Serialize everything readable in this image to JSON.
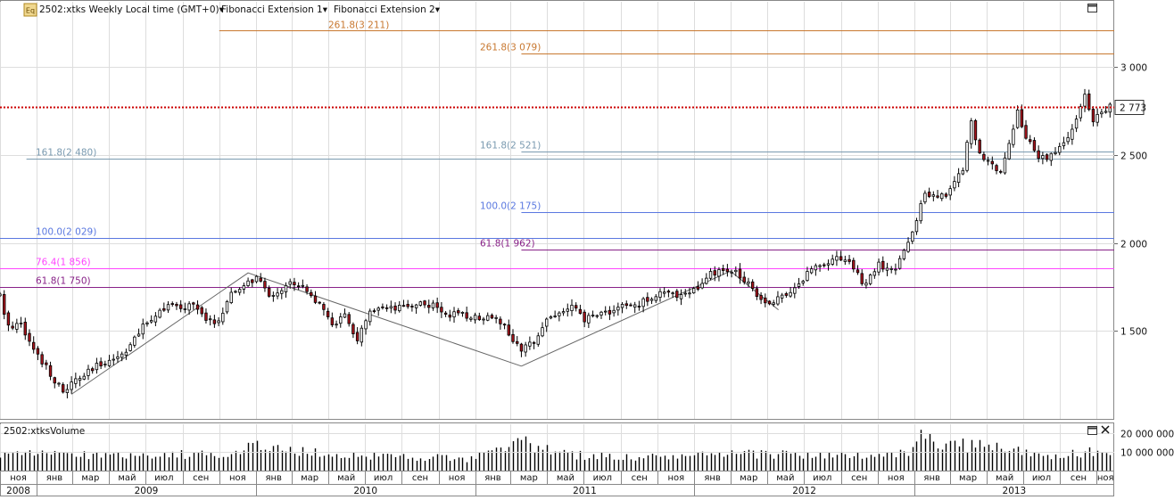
{
  "toolbar": {
    "symbol_label": "2502:xtks Weekly Local time (GMT+0)",
    "study1_label": "Fibonacci Extension 1",
    "study2_label": "Fibonacci Extension 2",
    "caret": "▾",
    "icon_glyph": "Eq"
  },
  "volume_panel": {
    "title": "2502:xtksVolume"
  },
  "colors": {
    "up": "#ffffff",
    "down": "#a8141c",
    "candle_outline": "#000000",
    "fib_lines": {
      "261.8": "#c87830",
      "161.8": "#7a9ab0",
      "100.0": "#5a78e0",
      "76.4": "#ff44ff",
      "61.8": "#882288"
    },
    "last_price_line": "#cc0000",
    "grid": "#dddddd",
    "volume_bar": "#000000"
  },
  "chart_data": [
    {
      "type": "candlestick",
      "timeframe": "Weekly",
      "x_range": [
        "2008-11-01",
        "2013-11-30"
      ],
      "y_range": [
        1000,
        3280
      ],
      "y_ticks": [
        {
          "value": 1500,
          "label": "1 500"
        },
        {
          "value": 2000,
          "label": "2 000"
        },
        {
          "value": 2500,
          "label": "2 500"
        },
        {
          "value": 3000,
          "label": "3 000"
        }
      ],
      "last_price": {
        "value": 2773,
        "label": "2 773"
      },
      "weekly_close_path": [
        [
          "2008-11-01",
          1700
        ],
        [
          "2008-11-08",
          1580
        ],
        [
          "2008-11-22",
          1520
        ],
        [
          "2008-12-06",
          1560
        ],
        [
          "2008-12-20",
          1430
        ],
        [
          "2009-01-03",
          1360
        ],
        [
          "2009-01-17",
          1300
        ],
        [
          "2009-01-31",
          1220
        ],
        [
          "2009-02-14",
          1150
        ],
        [
          "2009-02-28",
          1200
        ],
        [
          "2009-03-14",
          1230
        ],
        [
          "2009-04-04",
          1280
        ],
        [
          "2009-04-25",
          1330
        ],
        [
          "2009-05-16",
          1350
        ],
        [
          "2009-06-06",
          1420
        ],
        [
          "2009-06-27",
          1520
        ],
        [
          "2009-07-18",
          1600
        ],
        [
          "2009-08-08",
          1650
        ],
        [
          "2009-08-29",
          1620
        ],
        [
          "2009-09-19",
          1660
        ],
        [
          "2009-10-10",
          1550
        ],
        [
          "2009-10-31",
          1560
        ],
        [
          "2009-11-21",
          1700
        ],
        [
          "2009-12-12",
          1760
        ],
        [
          "2010-01-02",
          1800
        ],
        [
          "2010-01-23",
          1700
        ],
        [
          "2010-02-13",
          1740
        ],
        [
          "2010-03-06",
          1780
        ],
        [
          "2010-03-27",
          1740
        ],
        [
          "2010-04-17",
          1640
        ],
        [
          "2010-05-08",
          1540
        ],
        [
          "2010-05-29",
          1580
        ],
        [
          "2010-06-19",
          1450
        ],
        [
          "2010-07-10",
          1600
        ],
        [
          "2010-07-31",
          1620
        ],
        [
          "2010-08-21",
          1620
        ],
        [
          "2010-09-11",
          1640
        ],
        [
          "2010-10-02",
          1660
        ],
        [
          "2010-10-23",
          1640
        ],
        [
          "2010-11-13",
          1600
        ],
        [
          "2010-12-04",
          1590
        ],
        [
          "2010-12-25",
          1580
        ],
        [
          "2011-01-15",
          1580
        ],
        [
          "2011-02-05",
          1590
        ],
        [
          "2011-03-05",
          1450
        ],
        [
          "2011-03-19",
          1380
        ],
        [
          "2011-04-09",
          1450
        ],
        [
          "2011-04-30",
          1570
        ],
        [
          "2011-05-21",
          1600
        ],
        [
          "2011-06-11",
          1640
        ],
        [
          "2011-07-02",
          1560
        ],
        [
          "2011-07-23",
          1600
        ],
        [
          "2011-08-13",
          1610
        ],
        [
          "2011-09-03",
          1640
        ],
        [
          "2011-09-24",
          1640
        ],
        [
          "2011-10-15",
          1680
        ],
        [
          "2011-11-05",
          1720
        ],
        [
          "2011-11-26",
          1700
        ],
        [
          "2011-12-17",
          1720
        ],
        [
          "2012-01-07",
          1740
        ],
        [
          "2012-01-28",
          1820
        ],
        [
          "2012-02-18",
          1840
        ],
        [
          "2012-03-10",
          1830
        ],
        [
          "2012-03-31",
          1780
        ],
        [
          "2012-04-21",
          1680
        ],
        [
          "2012-05-12",
          1660
        ],
        [
          "2012-06-02",
          1720
        ],
        [
          "2012-06-23",
          1760
        ],
        [
          "2012-07-14",
          1860
        ],
        [
          "2012-08-04",
          1890
        ],
        [
          "2012-08-25",
          1920
        ],
        [
          "2012-09-15",
          1900
        ],
        [
          "2012-10-06",
          1770
        ],
        [
          "2012-10-20",
          1800
        ],
        [
          "2012-11-03",
          1880
        ],
        [
          "2012-11-17",
          1840
        ],
        [
          "2012-12-01",
          1850
        ],
        [
          "2012-12-15",
          1960
        ],
        [
          "2012-12-29",
          2050
        ],
        [
          "2013-01-19",
          2300
        ],
        [
          "2013-02-09",
          2250
        ],
        [
          "2013-02-23",
          2280
        ],
        [
          "2013-03-09",
          2350
        ],
        [
          "2013-03-23",
          2430
        ],
        [
          "2013-04-06",
          2700
        ],
        [
          "2013-04-20",
          2500
        ],
        [
          "2013-05-04",
          2450
        ],
        [
          "2013-05-25",
          2420
        ],
        [
          "2013-06-08",
          2560
        ],
        [
          "2013-06-22",
          2750
        ],
        [
          "2013-07-06",
          2600
        ],
        [
          "2013-07-27",
          2480
        ],
        [
          "2013-08-17",
          2500
        ],
        [
          "2013-09-07",
          2560
        ],
        [
          "2013-09-28",
          2700
        ],
        [
          "2013-10-12",
          2830
        ],
        [
          "2013-10-26",
          2680
        ],
        [
          "2013-11-09",
          2760
        ],
        [
          "2013-11-23",
          2773
        ]
      ],
      "fib_extension_1": {
        "pivots": [
          [
            "2009-02-28",
            1140
          ],
          [
            "2009-12-19",
            1830
          ],
          [
            "2011-03-19",
            1300
          ]
        ],
        "levels": [
          {
            "label": "61.8(1 750)",
            "value": 1750,
            "x_start": "2008-11-01",
            "key": "61.8"
          },
          {
            "label": "76.4(1 856)",
            "value": 1856,
            "x_start": "2008-11-01",
            "key": "76.4"
          },
          {
            "label": "100.0(2 029)",
            "value": 2029,
            "x_start": "2008-11-01",
            "key": "100.0"
          },
          {
            "label": "161.8(2 480)",
            "value": 2480,
            "x_start": "2008-12-15",
            "key": "161.8"
          }
        ]
      },
      "fib_extension_2": {
        "pivots": [
          [
            "2011-03-19",
            1300
          ],
          [
            "2012-03-01",
            1840
          ],
          [
            "2012-05-20",
            1620
          ]
        ],
        "levels": [
          {
            "label": "61.8(1 962)",
            "value": 1962,
            "x_start": "2011-03-19",
            "key": "61.8"
          },
          {
            "label": "100.0(2 175)",
            "value": 2175,
            "x_start": "2011-03-19",
            "key": "100.0"
          },
          {
            "label": "161.8(2 521)",
            "value": 2521,
            "x_start": "2011-03-19",
            "key": "161.8"
          },
          {
            "label": "261.8(3 079)",
            "value": 3079,
            "x_start": "2011-03-19",
            "key": "261.8"
          }
        ]
      },
      "fib_extension_1_upper": {
        "label": "261.8(3 211)",
        "value": 3211,
        "x_start": "2009-11-01"
      }
    },
    {
      "type": "bar",
      "title": "2502:xtksVolume",
      "y_range": [
        0,
        25000000
      ],
      "y_ticks": [
        {
          "value": 10000000,
          "label": "10 000 000"
        },
        {
          "value": 20000000,
          "label": "20 000 000"
        }
      ],
      "volume_profile": [
        [
          "2008-11-01",
          8000000
        ],
        [
          "2009-01-31",
          9500000
        ],
        [
          "2009-04-25",
          8000000
        ],
        [
          "2009-07-18",
          9000000
        ],
        [
          "2009-10-10",
          8500000
        ],
        [
          "2009-12-12",
          11000000
        ],
        [
          "2010-01-02",
          13000000
        ],
        [
          "2010-04-17",
          9000000
        ],
        [
          "2010-07-10",
          8000000
        ],
        [
          "2010-10-02",
          7500000
        ],
        [
          "2010-12-25",
          6000000
        ],
        [
          "2011-03-19",
          15000000
        ],
        [
          "2011-06-11",
          8500000
        ],
        [
          "2011-09-24",
          7000000
        ],
        [
          "2012-01-07",
          8000000
        ],
        [
          "2012-04-21",
          9000000
        ],
        [
          "2012-08-04",
          8500000
        ],
        [
          "2012-11-03",
          7000000
        ],
        [
          "2012-12-29",
          11000000
        ],
        [
          "2013-01-19",
          17000000
        ],
        [
          "2013-02-23",
          12000000
        ],
        [
          "2013-04-06",
          14000000
        ],
        [
          "2013-06-08",
          11000000
        ],
        [
          "2013-08-17",
          8000000
        ],
        [
          "2013-10-12",
          9000000
        ],
        [
          "2013-11-23",
          8000000
        ]
      ],
      "volume_peaks": [
        [
          "2009-12-19",
          15000000
        ],
        [
          "2011-03-12",
          17500000
        ],
        [
          "2011-03-19",
          16500000
        ],
        [
          "2013-01-12",
          22000000
        ],
        [
          "2013-01-26",
          20000000
        ],
        [
          "2013-03-02",
          16000000
        ],
        [
          "2013-04-06",
          16500000
        ],
        [
          "2013-05-04",
          14000000
        ],
        [
          "2013-10-19",
          12500000
        ]
      ]
    }
  ],
  "x_axis": {
    "months": [
      {
        "date": "2008-11-01",
        "label": "ноя"
      },
      {
        "date": "2009-01-01",
        "label": "янв"
      },
      {
        "date": "2009-03-01",
        "label": "мар"
      },
      {
        "date": "2009-05-01",
        "label": "май"
      },
      {
        "date": "2009-07-01",
        "label": "июл"
      },
      {
        "date": "2009-09-01",
        "label": "сен"
      },
      {
        "date": "2009-11-01",
        "label": "ноя"
      },
      {
        "date": "2010-01-01",
        "label": "янв"
      },
      {
        "date": "2010-03-01",
        "label": "мар"
      },
      {
        "date": "2010-05-01",
        "label": "май"
      },
      {
        "date": "2010-07-01",
        "label": "июл"
      },
      {
        "date": "2010-09-01",
        "label": "сен"
      },
      {
        "date": "2010-11-01",
        "label": "ноя"
      },
      {
        "date": "2011-01-01",
        "label": "янв"
      },
      {
        "date": "2011-03-01",
        "label": "мар"
      },
      {
        "date": "2011-05-01",
        "label": "май"
      },
      {
        "date": "2011-07-01",
        "label": "июл"
      },
      {
        "date": "2011-09-01",
        "label": "сен"
      },
      {
        "date": "2011-11-01",
        "label": "ноя"
      },
      {
        "date": "2012-01-01",
        "label": "янв"
      },
      {
        "date": "2012-03-01",
        "label": "мар"
      },
      {
        "date": "2012-05-01",
        "label": "май"
      },
      {
        "date": "2012-07-01",
        "label": "июл"
      },
      {
        "date": "2012-09-01",
        "label": "сен"
      },
      {
        "date": "2012-11-01",
        "label": "ноя"
      },
      {
        "date": "2013-01-01",
        "label": "янв"
      },
      {
        "date": "2013-03-01",
        "label": "мар"
      },
      {
        "date": "2013-05-01",
        "label": "май"
      },
      {
        "date": "2013-07-01",
        "label": "июл"
      },
      {
        "date": "2013-09-01",
        "label": "сен"
      },
      {
        "date": "2013-11-01",
        "label": "ноя"
      }
    ],
    "years": [
      {
        "start": "2008-11-01",
        "end": "2009-01-01",
        "label": "2008"
      },
      {
        "start": "2009-01-01",
        "end": "2010-01-01",
        "label": "2009"
      },
      {
        "start": "2010-01-01",
        "end": "2011-01-01",
        "label": "2010"
      },
      {
        "start": "2011-01-01",
        "end": "2012-01-01",
        "label": "2011"
      },
      {
        "start": "2012-01-01",
        "end": "2013-01-01",
        "label": "2012"
      },
      {
        "start": "2013-01-01",
        "end": "2013-12-01",
        "label": "2013"
      }
    ]
  }
}
